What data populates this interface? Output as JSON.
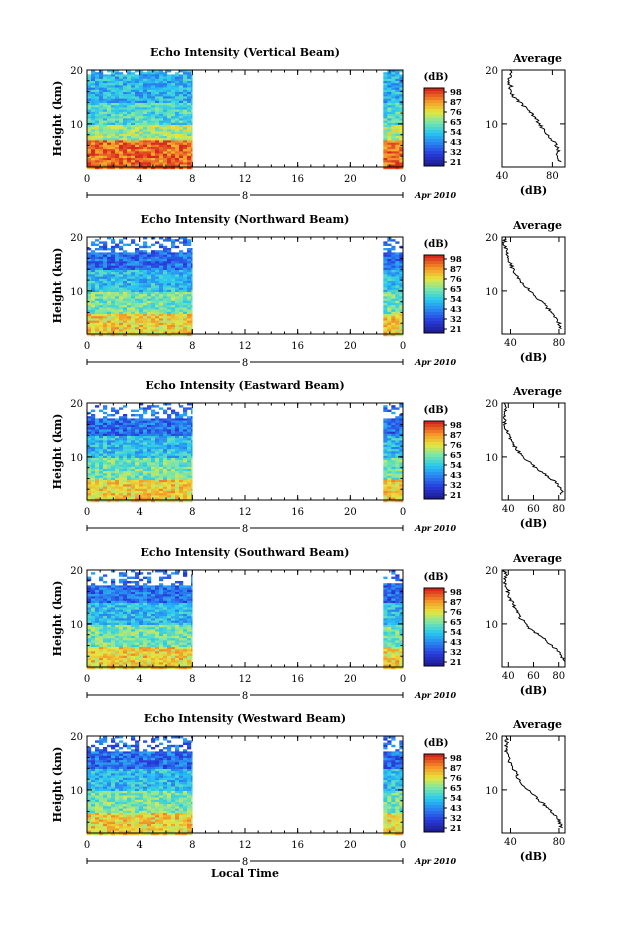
{
  "chart_data": [
    {
      "type": "heatmap",
      "title": "Echo Intensity (Vertical Beam)",
      "ylabel": "Height (km)",
      "xlabel": "",
      "x_ticks": [
        "0",
        "4",
        "8",
        "12",
        "16",
        "20",
        "0"
      ],
      "y_ticks": [
        "20",
        "10"
      ],
      "ylim": [
        2,
        20
      ],
      "xlim": [
        0,
        24
      ],
      "date_mark": "8",
      "date_suffix": "Apr 2010",
      "data_gap_hours": [
        8,
        22.5
      ],
      "colorbar": {
        "unit": "(dB)",
        "ticks": [
          "98",
          "87",
          "76",
          "65",
          "54",
          "43",
          "32",
          "21"
        ]
      },
      "profile": {
        "title": "Average",
        "xlabel": "(dB)",
        "x_ticks": [
          "40",
          "80"
        ],
        "xlim": [
          40,
          90
        ],
        "y_ticks": [
          "20",
          "10"
        ],
        "points": [
          [
            86,
            3
          ],
          [
            84,
            4
          ],
          [
            85,
            5
          ],
          [
            83,
            6
          ],
          [
            80,
            7
          ],
          [
            76,
            8
          ],
          [
            73,
            9
          ],
          [
            70,
            10
          ],
          [
            67,
            11
          ],
          [
            63,
            12
          ],
          [
            59,
            13
          ],
          [
            54,
            14
          ],
          [
            49,
            15
          ],
          [
            46,
            16
          ],
          [
            47,
            17
          ],
          [
            45,
            18
          ],
          [
            48,
            19
          ],
          [
            46,
            20
          ]
        ]
      }
    },
    {
      "type": "heatmap",
      "title": "Echo Intensity (Northward Beam)",
      "ylabel": "Height (km)",
      "xlabel": "",
      "x_ticks": [
        "0",
        "4",
        "8",
        "12",
        "16",
        "20",
        "0"
      ],
      "y_ticks": [
        "20",
        "10"
      ],
      "ylim": [
        2,
        20
      ],
      "xlim": [
        0,
        24
      ],
      "date_mark": "8",
      "date_suffix": "Apr 2010",
      "data_gap_hours": [
        8,
        22.5
      ],
      "colorbar": {
        "unit": "(dB)",
        "ticks": [
          "98",
          "87",
          "76",
          "65",
          "54",
          "43",
          "32",
          "21"
        ]
      },
      "profile": {
        "title": "Average",
        "xlabel": "(dB)",
        "x_ticks": [
          "40",
          "80"
        ],
        "xlim": [
          33,
          85
        ],
        "y_ticks": [
          "20",
          "10"
        ],
        "points": [
          [
            82,
            3
          ],
          [
            80,
            4
          ],
          [
            78,
            5
          ],
          [
            74,
            6
          ],
          [
            70,
            7
          ],
          [
            66,
            8
          ],
          [
            60,
            9
          ],
          [
            56,
            10
          ],
          [
            52,
            11
          ],
          [
            48,
            12
          ],
          [
            44,
            13
          ],
          [
            42,
            14
          ],
          [
            40,
            15
          ],
          [
            38,
            16
          ],
          [
            37,
            17
          ],
          [
            36,
            18
          ],
          [
            35,
            19
          ],
          [
            36,
            20
          ]
        ]
      }
    },
    {
      "type": "heatmap",
      "title": "Echo Intensity (Eastward Beam)",
      "ylabel": "Height (km)",
      "xlabel": "",
      "x_ticks": [
        "0",
        "4",
        "8",
        "12",
        "16",
        "20",
        "0"
      ],
      "y_ticks": [
        "20",
        "10"
      ],
      "ylim": [
        2,
        20
      ],
      "xlim": [
        0,
        24
      ],
      "date_mark": "8",
      "date_suffix": "Apr 2010",
      "data_gap_hours": [
        8,
        22.5
      ],
      "colorbar": {
        "unit": "(dB)",
        "ticks": [
          "98",
          "87",
          "76",
          "65",
          "54",
          "43",
          "32",
          "21"
        ]
      },
      "profile": {
        "title": "Average",
        "xlabel": "(dB)",
        "x_ticks": [
          "40",
          "60",
          "80"
        ],
        "xlim": [
          35,
          85
        ],
        "y_ticks": [
          "20",
          "10"
        ],
        "points": [
          [
            83,
            3
          ],
          [
            82,
            4
          ],
          [
            79,
            5
          ],
          [
            74,
            6
          ],
          [
            68,
            7
          ],
          [
            62,
            8
          ],
          [
            57,
            9
          ],
          [
            52,
            10
          ],
          [
            48,
            11
          ],
          [
            45,
            12
          ],
          [
            43,
            13
          ],
          [
            40,
            14
          ],
          [
            38,
            15
          ],
          [
            37,
            16
          ],
          [
            38,
            17
          ],
          [
            37,
            18
          ],
          [
            38,
            19
          ],
          [
            37,
            20
          ]
        ]
      }
    },
    {
      "type": "heatmap",
      "title": "Echo Intensity (Southward Beam)",
      "ylabel": "Height (km)",
      "xlabel": "",
      "x_ticks": [
        "0",
        "4",
        "8",
        "12",
        "16",
        "20",
        "0"
      ],
      "y_ticks": [
        "20",
        "10"
      ],
      "ylim": [
        2,
        20
      ],
      "xlim": [
        0,
        24
      ],
      "date_mark": "8",
      "date_suffix": "Apr 2010",
      "data_gap_hours": [
        8,
        22.5
      ],
      "colorbar": {
        "unit": "(dB)",
        "ticks": [
          "98",
          "87",
          "76",
          "65",
          "54",
          "43",
          "32",
          "21"
        ]
      },
      "profile": {
        "title": "Average",
        "xlabel": "(dB)",
        "x_ticks": [
          "40",
          "60",
          "80"
        ],
        "xlim": [
          35,
          85
        ],
        "y_ticks": [
          "20",
          "10"
        ],
        "points": [
          [
            84,
            3
          ],
          [
            82,
            4
          ],
          [
            79,
            5
          ],
          [
            75,
            6
          ],
          [
            70,
            7
          ],
          [
            64,
            8
          ],
          [
            58,
            9
          ],
          [
            54,
            10
          ],
          [
            50,
            11
          ],
          [
            47,
            12
          ],
          [
            45,
            13
          ],
          [
            43,
            14
          ],
          [
            41,
            15
          ],
          [
            40,
            16
          ],
          [
            38,
            17
          ],
          [
            37,
            18
          ],
          [
            38,
            19
          ],
          [
            37,
            20
          ]
        ]
      }
    },
    {
      "type": "heatmap",
      "title": "Echo Intensity (Westward Beam)",
      "ylabel": "Height (km)",
      "xlabel": "Local Time",
      "x_ticks": [
        "0",
        "4",
        "8",
        "12",
        "16",
        "20",
        "0"
      ],
      "y_ticks": [
        "20",
        "10"
      ],
      "ylim": [
        2,
        20
      ],
      "xlim": [
        0,
        24
      ],
      "date_mark": "8",
      "date_suffix": "Apr 2010",
      "data_gap_hours": [
        8,
        22.5
      ],
      "colorbar": {
        "unit": "(dB)",
        "ticks": [
          "98",
          "87",
          "76",
          "65",
          "54",
          "43",
          "32",
          "21"
        ]
      },
      "profile": {
        "title": "Average",
        "xlabel": "(dB)",
        "x_ticks": [
          "40",
          "80"
        ],
        "xlim": [
          33,
          85
        ],
        "y_ticks": [
          "20",
          "10"
        ],
        "points": [
          [
            82,
            3
          ],
          [
            81,
            4
          ],
          [
            78,
            5
          ],
          [
            74,
            6
          ],
          [
            69,
            7
          ],
          [
            64,
            8
          ],
          [
            59,
            9
          ],
          [
            54,
            10
          ],
          [
            50,
            11
          ],
          [
            47,
            12
          ],
          [
            45,
            13
          ],
          [
            42,
            14
          ],
          [
            40,
            15
          ],
          [
            38,
            16
          ],
          [
            37,
            17
          ],
          [
            36,
            18
          ],
          [
            37,
            19
          ],
          [
            36,
            20
          ]
        ]
      }
    }
  ]
}
